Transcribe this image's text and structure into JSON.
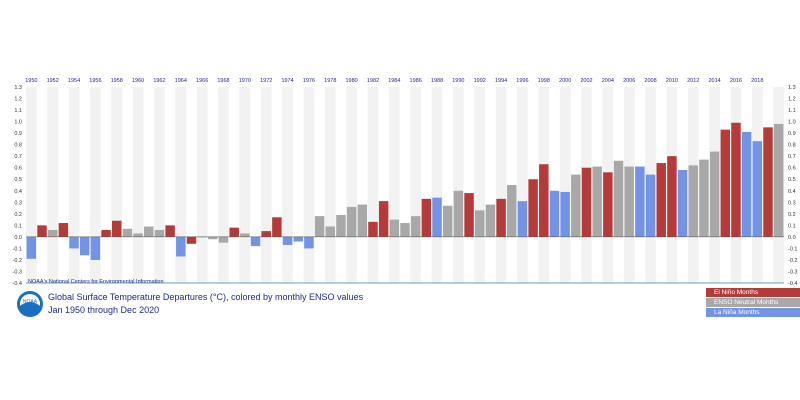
{
  "chart_data": {
    "type": "bar",
    "title": "Global Surface Temperature Departures (°C), colored by monthly ENSO values",
    "subtitle": "Jan 1950 through Dec 2020",
    "source": "NOAA's National Centers for Environmental Information",
    "logo_text": "NOAA",
    "ylim": [
      -0.4,
      1.3
    ],
    "y_ticks": [
      "-0.4",
      "-0.3",
      "-0.2",
      "-0.1",
      "0.0",
      "0.1",
      "0.2",
      "0.3",
      "0.4",
      "0.5",
      "0.6",
      "0.7",
      "0.8",
      "0.9",
      "1.0",
      "1.1",
      "1.2",
      "1.3"
    ],
    "x_ticks": [
      "1950",
      "1952",
      "1954",
      "1956",
      "1958",
      "1960",
      "1962",
      "1964",
      "1966",
      "1968",
      "1970",
      "1972",
      "1974",
      "1976",
      "1978",
      "1980",
      "1982",
      "1984",
      "1986",
      "1988",
      "1990",
      "1992",
      "1994",
      "1996",
      "1998",
      "2000",
      "2002",
      "2004",
      "2006",
      "2008",
      "2010",
      "2012",
      "2014",
      "2016",
      "2018"
    ],
    "x_range": [
      1950,
      2021
    ],
    "grid": "alternating-year-bands",
    "legend_position": "bottom-right",
    "colors": {
      "El Niño Months": "#b53a3a",
      "ENSO Neutral Months": "#a8a8a8",
      "La Niña Months": "#7393e6"
    },
    "series": [
      {
        "name": "El Niño Months",
        "color": "#b53a3a"
      },
      {
        "name": "ENSO Neutral Months",
        "color": "#a8a8a8"
      },
      {
        "name": "La Niña Months",
        "color": "#7393e6"
      }
    ],
    "annual": [
      {
        "year": 1950,
        "value": -0.19,
        "enso": "La Niña Months"
      },
      {
        "year": 1951,
        "value": 0.1,
        "enso": "El Niño Months"
      },
      {
        "year": 1952,
        "value": 0.06,
        "enso": "ENSO Neutral Months"
      },
      {
        "year": 1953,
        "value": 0.12,
        "enso": "El Niño Months"
      },
      {
        "year": 1954,
        "value": -0.1,
        "enso": "La Niña Months"
      },
      {
        "year": 1955,
        "value": -0.16,
        "enso": "La Niña Months"
      },
      {
        "year": 1956,
        "value": -0.2,
        "enso": "La Niña Months"
      },
      {
        "year": 1957,
        "value": 0.06,
        "enso": "El Niño Months"
      },
      {
        "year": 1958,
        "value": 0.14,
        "enso": "El Niño Months"
      },
      {
        "year": 1959,
        "value": 0.07,
        "enso": "ENSO Neutral Months"
      },
      {
        "year": 1960,
        "value": 0.03,
        "enso": "ENSO Neutral Months"
      },
      {
        "year": 1961,
        "value": 0.09,
        "enso": "ENSO Neutral Months"
      },
      {
        "year": 1962,
        "value": 0.06,
        "enso": "ENSO Neutral Months"
      },
      {
        "year": 1963,
        "value": 0.1,
        "enso": "El Niño Months"
      },
      {
        "year": 1964,
        "value": -0.17,
        "enso": "La Niña Months"
      },
      {
        "year": 1965,
        "value": -0.06,
        "enso": "El Niño Months"
      },
      {
        "year": 1966,
        "value": 0.0,
        "enso": "ENSO Neutral Months"
      },
      {
        "year": 1967,
        "value": -0.02,
        "enso": "ENSO Neutral Months"
      },
      {
        "year": 1968,
        "value": -0.05,
        "enso": "ENSO Neutral Months"
      },
      {
        "year": 1969,
        "value": 0.08,
        "enso": "El Niño Months"
      },
      {
        "year": 1970,
        "value": 0.03,
        "enso": "ENSO Neutral Months"
      },
      {
        "year": 1971,
        "value": -0.08,
        "enso": "La Niña Months"
      },
      {
        "year": 1972,
        "value": 0.05,
        "enso": "El Niño Months"
      },
      {
        "year": 1973,
        "value": 0.17,
        "enso": "El Niño Months"
      },
      {
        "year": 1974,
        "value": -0.07,
        "enso": "La Niña Months"
      },
      {
        "year": 1975,
        "value": -0.04,
        "enso": "La Niña Months"
      },
      {
        "year": 1976,
        "value": -0.1,
        "enso": "La Niña Months"
      },
      {
        "year": 1977,
        "value": 0.18,
        "enso": "ENSO Neutral Months"
      },
      {
        "year": 1978,
        "value": 0.09,
        "enso": "ENSO Neutral Months"
      },
      {
        "year": 1979,
        "value": 0.19,
        "enso": "ENSO Neutral Months"
      },
      {
        "year": 1980,
        "value": 0.26,
        "enso": "ENSO Neutral Months"
      },
      {
        "year": 1981,
        "value": 0.28,
        "enso": "ENSO Neutral Months"
      },
      {
        "year": 1982,
        "value": 0.13,
        "enso": "El Niño Months"
      },
      {
        "year": 1983,
        "value": 0.31,
        "enso": "El Niño Months"
      },
      {
        "year": 1984,
        "value": 0.15,
        "enso": "ENSO Neutral Months"
      },
      {
        "year": 1985,
        "value": 0.12,
        "enso": "ENSO Neutral Months"
      },
      {
        "year": 1986,
        "value": 0.18,
        "enso": "ENSO Neutral Months"
      },
      {
        "year": 1987,
        "value": 0.33,
        "enso": "El Niño Months"
      },
      {
        "year": 1988,
        "value": 0.34,
        "enso": "La Niña Months"
      },
      {
        "year": 1989,
        "value": 0.27,
        "enso": "ENSO Neutral Months"
      },
      {
        "year": 1990,
        "value": 0.4,
        "enso": "ENSO Neutral Months"
      },
      {
        "year": 1991,
        "value": 0.38,
        "enso": "El Niño Months"
      },
      {
        "year": 1992,
        "value": 0.23,
        "enso": "ENSO Neutral Months"
      },
      {
        "year": 1993,
        "value": 0.28,
        "enso": "ENSO Neutral Months"
      },
      {
        "year": 1994,
        "value": 0.33,
        "enso": "El Niño Months"
      },
      {
        "year": 1995,
        "value": 0.45,
        "enso": "ENSO Neutral Months"
      },
      {
        "year": 1996,
        "value": 0.31,
        "enso": "La Niña Months"
      },
      {
        "year": 1997,
        "value": 0.5,
        "enso": "El Niño Months"
      },
      {
        "year": 1998,
        "value": 0.63,
        "enso": "El Niño Months"
      },
      {
        "year": 1999,
        "value": 0.4,
        "enso": "La Niña Months"
      },
      {
        "year": 2000,
        "value": 0.39,
        "enso": "La Niña Months"
      },
      {
        "year": 2001,
        "value": 0.54,
        "enso": "ENSO Neutral Months"
      },
      {
        "year": 2002,
        "value": 0.6,
        "enso": "El Niño Months"
      },
      {
        "year": 2003,
        "value": 0.61,
        "enso": "ENSO Neutral Months"
      },
      {
        "year": 2004,
        "value": 0.56,
        "enso": "El Niño Months"
      },
      {
        "year": 2005,
        "value": 0.66,
        "enso": "ENSO Neutral Months"
      },
      {
        "year": 2006,
        "value": 0.61,
        "enso": "ENSO Neutral Months"
      },
      {
        "year": 2007,
        "value": 0.61,
        "enso": "La Niña Months"
      },
      {
        "year": 2008,
        "value": 0.54,
        "enso": "La Niña Months"
      },
      {
        "year": 2009,
        "value": 0.64,
        "enso": "El Niño Months"
      },
      {
        "year": 2010,
        "value": 0.7,
        "enso": "El Niño Months"
      },
      {
        "year": 2011,
        "value": 0.58,
        "enso": "La Niña Months"
      },
      {
        "year": 2012,
        "value": 0.62,
        "enso": "ENSO Neutral Months"
      },
      {
        "year": 2013,
        "value": 0.67,
        "enso": "ENSO Neutral Months"
      },
      {
        "year": 2014,
        "value": 0.74,
        "enso": "ENSO Neutral Months"
      },
      {
        "year": 2015,
        "value": 0.93,
        "enso": "El Niño Months"
      },
      {
        "year": 2016,
        "value": 0.99,
        "enso": "El Niño Months"
      },
      {
        "year": 2017,
        "value": 0.91,
        "enso": "La Niña Months"
      },
      {
        "year": 2018,
        "value": 0.83,
        "enso": "La Niña Months"
      },
      {
        "year": 2019,
        "value": 0.95,
        "enso": "El Niño Months"
      },
      {
        "year": 2020,
        "value": 0.98,
        "enso": "ENSO Neutral Months"
      }
    ]
  }
}
